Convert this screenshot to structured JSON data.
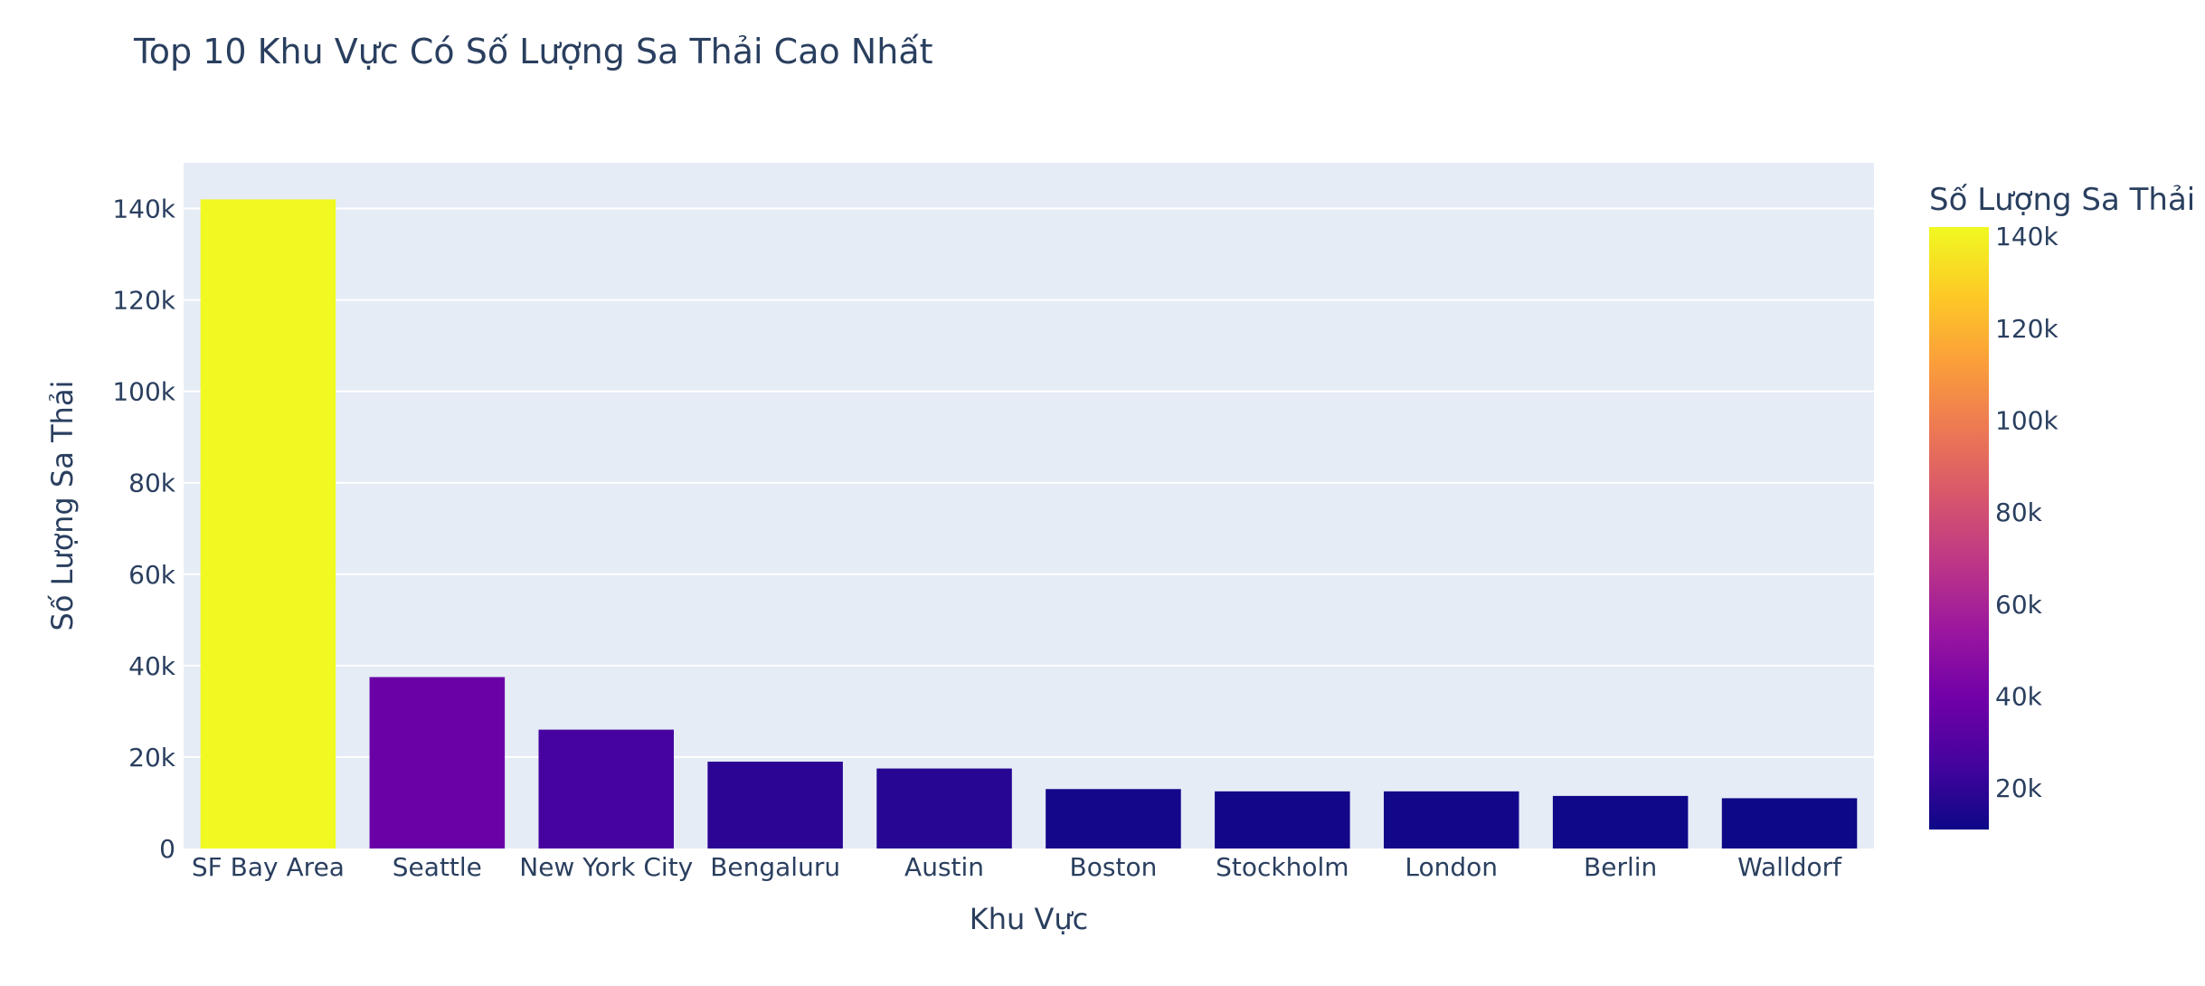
{
  "chart_data": {
    "type": "bar",
    "title": "Top 10 Khu Vực Có Số Lượng Sa Thải Cao Nhất",
    "xlabel": "Khu Vực",
    "ylabel": "Số Lượng Sa Thải",
    "categories": [
      "SF Bay Area",
      "Seattle",
      "New York City",
      "Bengaluru",
      "Austin",
      "Boston",
      "Stockholm",
      "London",
      "Berlin",
      "Walldorf"
    ],
    "values": [
      142000,
      37500,
      26000,
      19000,
      17500,
      13000,
      12500,
      12500,
      11500,
      11000
    ],
    "ylim": [
      0,
      150000
    ],
    "yticks": [
      0,
      20000,
      40000,
      60000,
      80000,
      100000,
      120000,
      140000
    ],
    "ytick_labels": [
      "0",
      "20k",
      "40k",
      "60k",
      "80k",
      "100k",
      "120k",
      "140k"
    ],
    "grid": true,
    "colorbar": {
      "title": "Số Lượng Sa Thải",
      "min": 11000,
      "max": 142000,
      "ticks": [
        20000,
        40000,
        60000,
        80000,
        100000,
        120000,
        140000
      ],
      "tick_labels": [
        "20k",
        "40k",
        "60k",
        "80k",
        "100k",
        "120k",
        "140k"
      ],
      "colorscale": "plasma"
    },
    "colors": {
      "plot_background": "#e5ecf6",
      "gridline": "#ffffff",
      "text": "#2a3f5f"
    }
  }
}
